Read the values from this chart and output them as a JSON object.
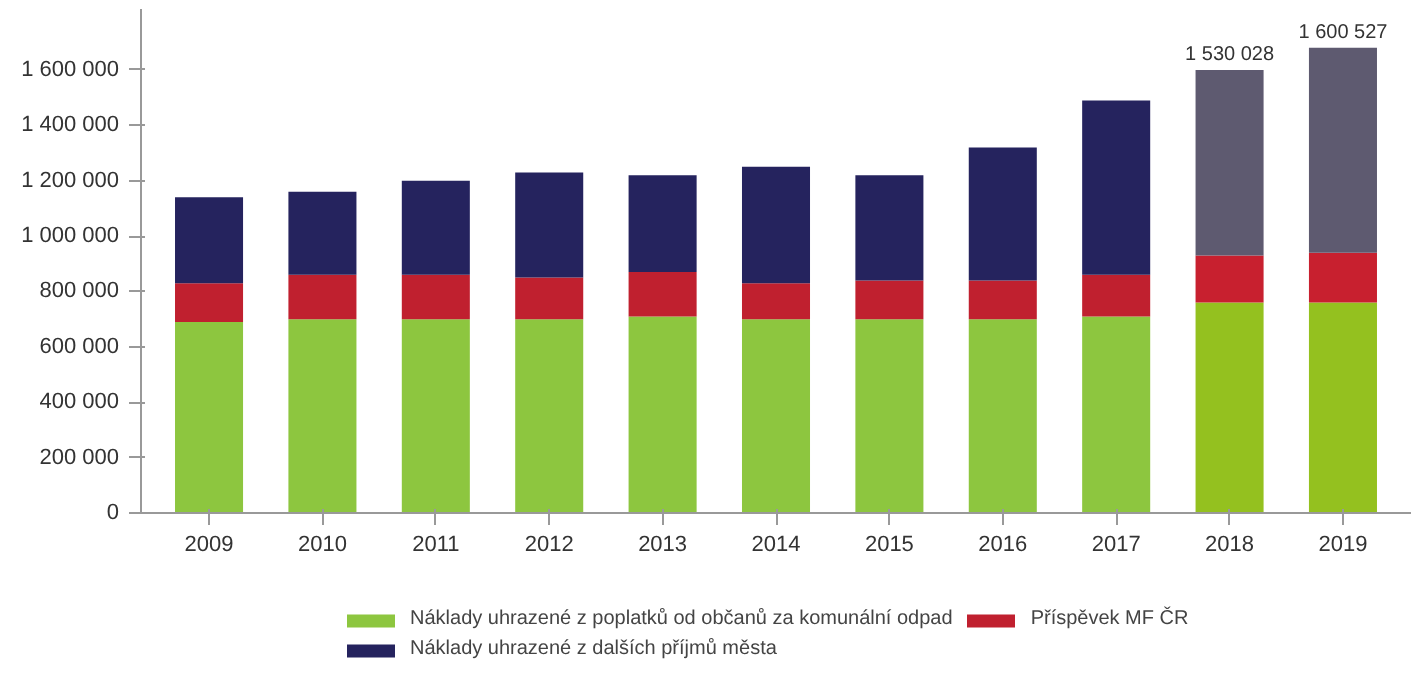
{
  "chart_data": {
    "type": "bar",
    "stacked": true,
    "categories": [
      "2009",
      "2010",
      "2011",
      "2012",
      "2013",
      "2014",
      "2015",
      "2016",
      "2017",
      "2018",
      "2019"
    ],
    "series": [
      {
        "name": "Náklady uhrazené z poplatků od občanů za komunální odpad",
        "color": "#8dc63f",
        "colors": [
          "#8dc63f",
          "#8dc63f",
          "#8dc63f",
          "#8dc63f",
          "#8dc63f",
          "#8dc63f",
          "#8dc63f",
          "#8dc63f",
          "#8dc63f",
          "#94c11f",
          "#94c11f"
        ],
        "values": [
          690000,
          700000,
          700000,
          700000,
          710000,
          700000,
          700000,
          700000,
          710000,
          760000,
          760000
        ]
      },
      {
        "name": "Příspěvek MF ČR",
        "color": "#c0202f",
        "colors": [
          "#c0202f",
          "#c0202f",
          "#c0202f",
          "#c0202f",
          "#c0202f",
          "#c0202f",
          "#c0202f",
          "#c0202f",
          "#c0202f",
          "#c8202f",
          "#c8202f"
        ],
        "values": [
          140000,
          160000,
          160000,
          150000,
          160000,
          130000,
          140000,
          140000,
          150000,
          170000,
          180000
        ]
      },
      {
        "name": "Náklady uhrazené z dalších příjmů města",
        "color": "#25235e",
        "colors": [
          "#25235e",
          "#25235e",
          "#25235e",
          "#25235e",
          "#25235e",
          "#25235e",
          "#25235e",
          "#25235e",
          "#25235e",
          "#5e5a70",
          "#5e5a70"
        ],
        "values": [
          310000,
          300000,
          340000,
          380000,
          350000,
          420000,
          380000,
          480000,
          630000,
          670000,
          740000
        ]
      }
    ],
    "ylim": [
      0,
      1820000
    ],
    "yticks": [
      0,
      {
        "value": 200000,
        "label": "200 000"
      },
      {
        "value": 400000,
        "label": "400 000"
      },
      {
        "value": 600000,
        "label": "600 000"
      },
      {
        "value": 800000,
        "label": "800 000"
      },
      {
        "value": 1000000,
        "label": "1 000 000"
      },
      {
        "value": 1200000,
        "label": "1 200 000"
      },
      {
        "value": 1400000,
        "label": "1 400 000"
      },
      {
        "value": 1600000,
        "label": "1 600 000"
      }
    ],
    "annotations": [
      {
        "text": "1 530 028",
        "x": "2018",
        "y": 1600000
      },
      {
        "text": "1 600 527",
        "x": "2019",
        "y": 1680000
      }
    ],
    "grid": false,
    "legend": "bottom"
  }
}
